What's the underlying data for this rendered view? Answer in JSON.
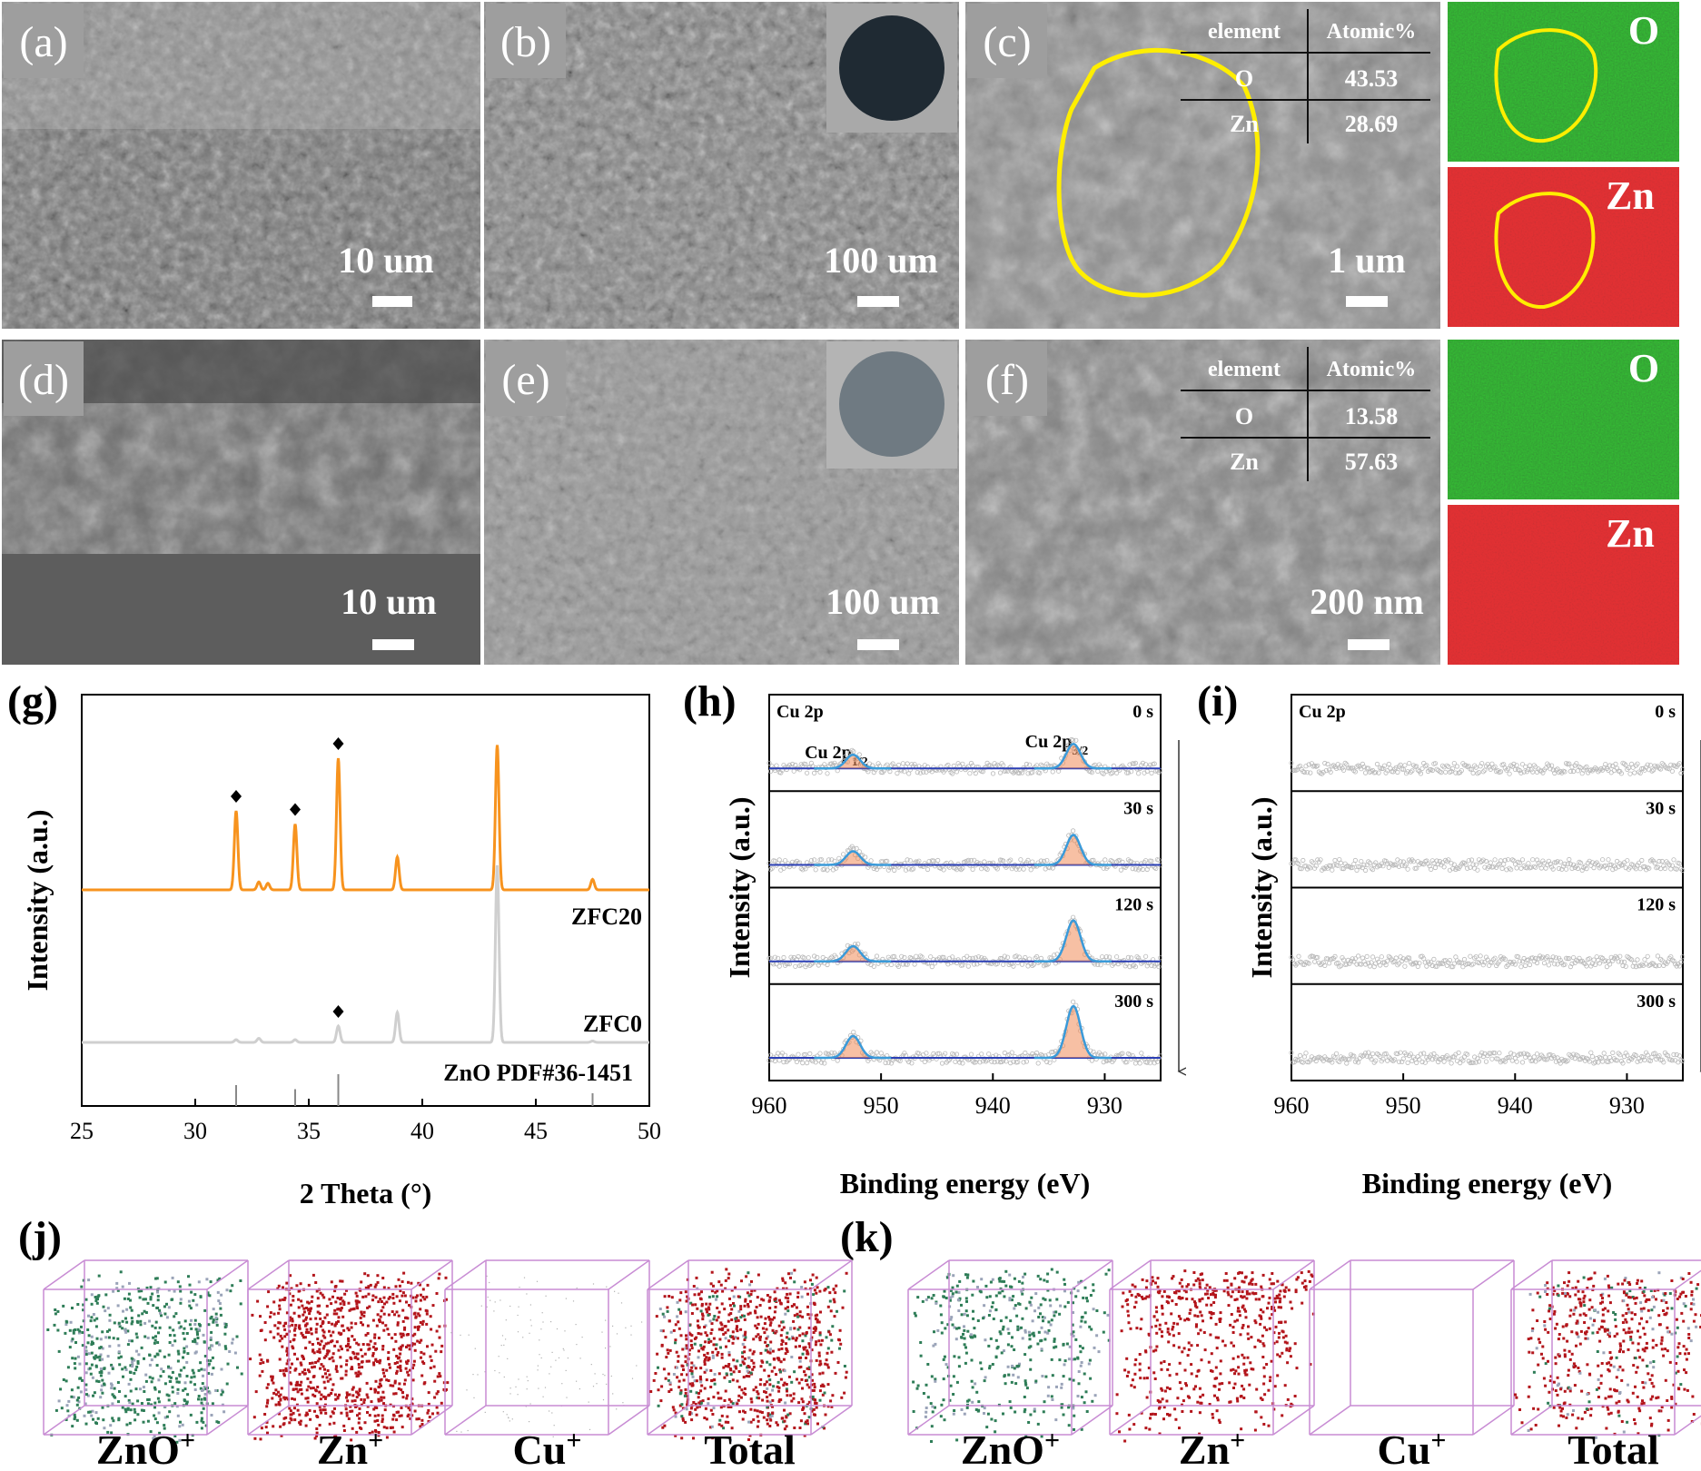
{
  "colors": {
    "orange": "#f7931e",
    "gray": "#cfcfcf",
    "xps_fit": "#3a9ad9",
    "xps_fill": "#f08c5a",
    "baseline": "#2b3fb5",
    "ion_zno": "#2e7d57",
    "ion_zn": "#b3151b",
    "box_edge": "#c88cd4",
    "eds_o": "#1b7a1b",
    "eds_zn": "#b51a1a",
    "outline": "#ffee00"
  },
  "sem": {
    "a": {
      "label": "(a)",
      "scale": "10 um"
    },
    "b": {
      "label": "(b)",
      "scale": "100 um"
    },
    "c": {
      "label": "(c)",
      "scale": "1 um",
      "table": {
        "head": [
          "element",
          "Atomic%"
        ],
        "rows": [
          [
            "O",
            "43.53"
          ],
          [
            "Zn",
            "28.69"
          ]
        ]
      }
    },
    "d": {
      "label": "(d)",
      "scale": "10 um"
    },
    "e": {
      "label": "(e)",
      "scale": "100 um"
    },
    "f": {
      "label": "(f)",
      "scale": "200 nm",
      "table": {
        "head": [
          "element",
          "Atomic%"
        ],
        "rows": [
          [
            "O",
            "13.58"
          ],
          [
            "Zn",
            "57.63"
          ]
        ]
      }
    },
    "map_labels": {
      "o": "O",
      "zn": "Zn"
    }
  },
  "chart_data": [
    {
      "panel": "(g)",
      "type": "line",
      "xlabel": "2 Theta (°)",
      "ylabel": "Intensity (a.u.)",
      "xlim": [
        25,
        50
      ],
      "xticks": [
        25,
        30,
        35,
        40,
        45,
        50
      ],
      "series": [
        {
          "name": "ZFC20",
          "color": "orange",
          "peaks": [
            [
              31.8,
              0.6
            ],
            [
              32.8,
              0.06
            ],
            [
              33.2,
              0.05
            ],
            [
              34.4,
              0.5
            ],
            [
              36.3,
              1.0
            ],
            [
              38.9,
              0.25
            ],
            [
              43.3,
              1.1
            ],
            [
              47.5,
              0.08
            ]
          ]
        },
        {
          "name": "ZFC0",
          "color": "gray",
          "peaks": [
            [
              31.8,
              0.02
            ],
            [
              32.8,
              0.03
            ],
            [
              34.4,
              0.02
            ],
            [
              36.3,
              0.12
            ],
            [
              38.9,
              0.22
            ],
            [
              43.3,
              1.3
            ],
            [
              47.5,
              0.01
            ]
          ]
        }
      ],
      "markers": [
        [
          31.8,
          "ZFC20"
        ],
        [
          34.4,
          "ZFC20"
        ],
        [
          36.3,
          "ZFC20"
        ],
        [
          36.3,
          "ZFC0"
        ]
      ],
      "reference": {
        "name": "ZnO PDF#36-1451",
        "positions": [
          31.8,
          34.4,
          36.3,
          47.5
        ],
        "heights": [
          0.6,
          0.45,
          1.0,
          0.3
        ]
      }
    },
    {
      "panel": "(h)",
      "type": "line",
      "xlabel": "Binding energy (eV)",
      "ylabel": "Intensity (a.u.)",
      "xlim": [
        960,
        925
      ],
      "xticks": [
        960,
        950,
        940,
        930
      ],
      "inset_title": "Cu 2p",
      "peak_labels": [
        "Cu 2p1/2",
        "Cu 2p3/2"
      ],
      "series": [
        {
          "name": "0 s",
          "peaks": [
            [
              952.5,
              0.25
            ],
            [
              932.8,
              0.45
            ]
          ]
        },
        {
          "name": "30 s",
          "peaks": [
            [
              952.5,
              0.25
            ],
            [
              932.8,
              0.55
            ]
          ]
        },
        {
          "name": "120 s",
          "peaks": [
            [
              952.5,
              0.28
            ],
            [
              932.8,
              0.75
            ]
          ]
        },
        {
          "name": "300 s",
          "peaks": [
            [
              952.5,
              0.4
            ],
            [
              932.8,
              0.95
            ]
          ]
        }
      ]
    },
    {
      "panel": "(i)",
      "type": "line",
      "xlabel": "Binding energy (eV)",
      "ylabel": "Intensity (a.u.)",
      "xlim": [
        960,
        925
      ],
      "xticks": [
        960,
        950,
        940,
        930
      ],
      "inset_title": "Cu 2p",
      "series": [
        {
          "name": "0 s",
          "peaks": []
        },
        {
          "name": "30 s",
          "peaks": []
        },
        {
          "name": "120 s",
          "peaks": []
        },
        {
          "name": "300 s",
          "peaks": []
        }
      ]
    }
  ],
  "tof": {
    "j": {
      "label": "(j)",
      "items": [
        {
          "label": "ZnO+",
          "species": "zno",
          "density": 0.7
        },
        {
          "label": "Zn+",
          "species": "zn",
          "density": 1.0
        },
        {
          "label": "Cu+",
          "species": "cu",
          "density": 0.15
        },
        {
          "label": "Total",
          "species": "total",
          "density": 1.0
        }
      ]
    },
    "k": {
      "label": "(k)",
      "items": [
        {
          "label": "ZnO+",
          "species": "zno",
          "density": 0.5
        },
        {
          "label": "Zn+",
          "species": "zn",
          "density": 0.6
        },
        {
          "label": "Cu+",
          "species": "cu",
          "density": 0.0
        },
        {
          "label": "Total",
          "species": "total",
          "density": 0.6
        }
      ]
    }
  },
  "panel_labels": {
    "g": "(g)",
    "h": "(h)",
    "i": "(i)"
  }
}
